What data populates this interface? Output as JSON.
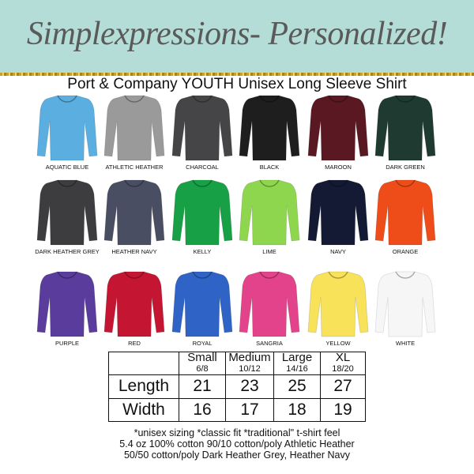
{
  "brand": "Simplexpressions- Personalized!",
  "title": "Port & Company YOUTH Unisex Long Sleeve Shirt",
  "colors": {
    "banner": "#b3ddd6",
    "glitter": "#d4af37"
  },
  "shirts": [
    {
      "name": "AQUATIC BLUE",
      "color": "#5aaee0"
    },
    {
      "name": "ATHLETIC HEATHER",
      "color": "#9a9a9a"
    },
    {
      "name": "CHARCOAL",
      "color": "#454547"
    },
    {
      "name": "BLACK",
      "color": "#1e1e1e"
    },
    {
      "name": "MAROON",
      "color": "#5a1822"
    },
    {
      "name": "DARK GREEN",
      "color": "#1f3a30"
    },
    {
      "name": "DARK HEATHER GREY",
      "color": "#3d3d3f"
    },
    {
      "name": "HEATHER NAVY",
      "color": "#4a4e63"
    },
    {
      "name": "KELLY",
      "color": "#17a046"
    },
    {
      "name": "LIME",
      "color": "#8fd64f"
    },
    {
      "name": "NAVY",
      "color": "#151a34"
    },
    {
      "name": "ORANGE",
      "color": "#ee4d1a"
    },
    {
      "name": "PURPLE",
      "color": "#5a3c9c"
    },
    {
      "name": "RED",
      "color": "#c41632"
    },
    {
      "name": "ROYAL",
      "color": "#2f63c6"
    },
    {
      "name": "SANGRIA",
      "color": "#e3438a"
    },
    {
      "name": "YELLOW",
      "color": "#f7e25a"
    },
    {
      "name": "WHITE",
      "color": "#f6f6f6"
    }
  ],
  "table": {
    "sizes": [
      {
        "name": "Small",
        "range": "6/8"
      },
      {
        "name": "Medium",
        "range": "10/12"
      },
      {
        "name": "Large",
        "range": "14/16"
      },
      {
        "name": "XL",
        "range": "18/20"
      }
    ],
    "rows": [
      {
        "label": "Length",
        "values": [
          "21",
          "23",
          "25",
          "27"
        ]
      },
      {
        "label": "Width",
        "values": [
          "16",
          "17",
          "18",
          "19"
        ]
      }
    ]
  },
  "notes": [
    "*unisex sizing *classic fit *traditional\" t-shirt feel",
    "5.4 oz 100% cotton 90/10 cotton/poly Athletic Heather",
    "50/50 cotton/poly Dark Heather Grey, Heather Navy"
  ]
}
